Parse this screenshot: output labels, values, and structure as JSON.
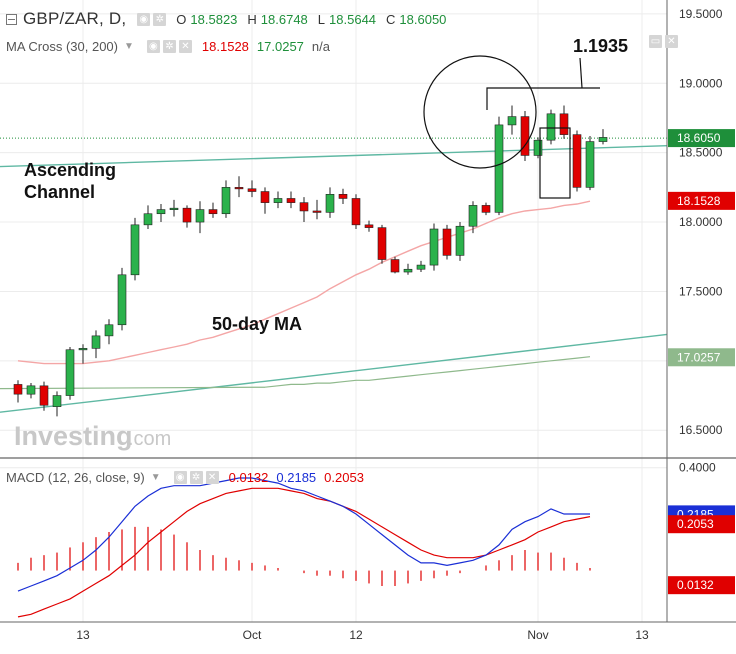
{
  "header": {
    "symbol": "GBP/ZAR, D,",
    "ohlc": [
      {
        "key": "O",
        "value": "18.5823"
      },
      {
        "key": "H",
        "value": "18.6748"
      },
      {
        "key": "L",
        "value": "18.5644"
      },
      {
        "key": "C",
        "value": "18.6050"
      }
    ],
    "ma_name": "MA Cross (30, 200)",
    "ma_v1": "18.1528",
    "ma_v2": "17.0257",
    "ma_v3": "n/a",
    "macd_name": "MACD (12, 26, close, 9)",
    "macd_v1": "0.0132",
    "macd_v2": "0.2185",
    "macd_v3": "0.2053"
  },
  "annotations": {
    "channel": "Ascending Channel",
    "ma50": "50-day MA",
    "level": "1.1935",
    "watermark": "Investing",
    "watermark_suffix": ".com"
  },
  "colors": {
    "up": "#2bb24c",
    "down": "#e00000",
    "ma30": "#f4a6a6",
    "ma200": "#8fb98c",
    "channel": "#5fb8a3",
    "macd": "#1a2fd6",
    "signal": "#e00000",
    "last_price_tag": "#1e8f3a",
    "ma_tag": "#e00000",
    "macd_tag": "#1a2fd6"
  },
  "chart_data": {
    "type": "candlestick",
    "price_axis": {
      "ylim": [
        16.3,
        19.6
      ],
      "ticks": [
        "16.5000",
        "17.0000",
        "17.5000",
        "18.0000",
        "18.5000",
        "19.0000",
        "19.5000"
      ]
    },
    "price_tags": {
      "last": "18.6050",
      "ma30": "18.1528",
      "ma200": "17.0257"
    },
    "x_ticks": [
      {
        "label": "13",
        "index": 5
      },
      {
        "label": "Oct",
        "index": 18
      },
      {
        "label": "12",
        "index": 26
      },
      {
        "label": "Nov",
        "index": 40
      },
      {
        "label": "13",
        "index": 48
      }
    ],
    "candles": [
      [
        16.83,
        16.86,
        16.7,
        16.76
      ],
      [
        16.76,
        16.84,
        16.73,
        16.82
      ],
      [
        16.82,
        16.85,
        16.64,
        16.68
      ],
      [
        16.67,
        16.78,
        16.6,
        16.75
      ],
      [
        16.75,
        17.1,
        16.72,
        17.08
      ],
      [
        17.08,
        17.12,
        16.98,
        17.09
      ],
      [
        17.09,
        17.22,
        17.02,
        17.18
      ],
      [
        17.18,
        17.3,
        17.12,
        17.26
      ],
      [
        17.26,
        17.67,
        17.22,
        17.62
      ],
      [
        17.62,
        18.03,
        17.58,
        17.98
      ],
      [
        17.98,
        18.12,
        17.95,
        18.06
      ],
      [
        18.06,
        18.13,
        18.0,
        18.09
      ],
      [
        18.09,
        18.16,
        18.04,
        18.1
      ],
      [
        18.1,
        18.12,
        17.96,
        18.0
      ],
      [
        18.0,
        18.15,
        17.92,
        18.09
      ],
      [
        18.09,
        18.14,
        18.03,
        18.06
      ],
      [
        18.06,
        18.3,
        18.03,
        18.25
      ],
      [
        18.25,
        18.33,
        18.18,
        18.24
      ],
      [
        18.24,
        18.3,
        18.18,
        18.22
      ],
      [
        18.22,
        18.25,
        18.06,
        18.14
      ],
      [
        18.14,
        18.22,
        18.1,
        18.17
      ],
      [
        18.17,
        18.22,
        18.1,
        18.14
      ],
      [
        18.14,
        18.18,
        18.0,
        18.08
      ],
      [
        18.08,
        18.16,
        18.02,
        18.07
      ],
      [
        18.07,
        18.25,
        18.03,
        18.2
      ],
      [
        18.2,
        18.24,
        18.13,
        18.17
      ],
      [
        18.17,
        18.2,
        17.95,
        17.98
      ],
      [
        17.98,
        18.01,
        17.93,
        17.96
      ],
      [
        17.96,
        17.98,
        17.7,
        17.73
      ],
      [
        17.73,
        17.75,
        17.63,
        17.64
      ],
      [
        17.64,
        17.7,
        17.62,
        17.66
      ],
      [
        17.66,
        17.72,
        17.64,
        17.69
      ],
      [
        17.69,
        17.99,
        17.65,
        17.95
      ],
      [
        17.95,
        17.98,
        17.73,
        17.76
      ],
      [
        17.76,
        18.0,
        17.72,
        17.97
      ],
      [
        17.97,
        18.15,
        17.92,
        18.12
      ],
      [
        18.12,
        18.14,
        18.05,
        18.07
      ],
      [
        18.07,
        18.76,
        18.05,
        18.7
      ],
      [
        18.7,
        18.84,
        18.63,
        18.76
      ],
      [
        18.76,
        18.8,
        18.44,
        18.48
      ],
      [
        18.48,
        18.61,
        18.46,
        18.59
      ],
      [
        18.59,
        18.81,
        18.56,
        18.78
      ],
      [
        18.78,
        18.84,
        18.6,
        18.63
      ],
      [
        18.63,
        18.66,
        18.22,
        18.25
      ],
      [
        18.25,
        18.62,
        18.23,
        18.58
      ],
      [
        18.58,
        18.67,
        18.56,
        18.61
      ]
    ],
    "ma30": [
      17.0,
      16.99,
      16.98,
      16.98,
      16.98,
      16.98,
      16.99,
      17.0,
      17.02,
      17.04,
      17.06,
      17.08,
      17.1,
      17.12,
      17.15,
      17.17,
      17.2,
      17.23,
      17.26,
      17.3,
      17.34,
      17.38,
      17.42,
      17.46,
      17.52,
      17.57,
      17.62,
      17.66,
      17.71,
      17.75,
      17.79,
      17.83,
      17.86,
      17.89,
      17.92,
      17.95,
      17.99,
      18.03,
      18.06,
      18.08,
      18.09,
      18.1,
      18.12,
      18.13,
      18.15
    ],
    "ma200": [
      16.81,
      16.82,
      16.83,
      16.83,
      16.84,
      16.84,
      16.85,
      16.86,
      16.86,
      16.87,
      16.88,
      16.89,
      16.9,
      16.91,
      16.92,
      16.93,
      16.94,
      16.95,
      16.96,
      16.97,
      16.98,
      16.99,
      17.0,
      17.01,
      17.02,
      17.03
    ],
    "channel_upper": {
      "from": [
        0,
        18.4
      ],
      "to": [
        53,
        18.55
      ]
    },
    "channel_lower": {
      "from": [
        0,
        16.63
      ],
      "to": [
        53,
        17.19
      ]
    },
    "macd_axis": {
      "ylim": [
        -0.2,
        0.43
      ],
      "ticks": [
        "0.4000"
      ]
    },
    "macd_tags": {
      "macd": "0.2185",
      "signal": "0.2053",
      "hist": "0.0132"
    },
    "macd": [
      -0.08,
      -0.06,
      -0.04,
      -0.02,
      0.01,
      0.04,
      0.08,
      0.13,
      0.19,
      0.25,
      0.29,
      0.32,
      0.33,
      0.33,
      0.33,
      0.34,
      0.35,
      0.36,
      0.36,
      0.35,
      0.34,
      0.32,
      0.31,
      0.29,
      0.27,
      0.25,
      0.22,
      0.18,
      0.14,
      0.1,
      0.06,
      0.03,
      0.03,
      0.02,
      0.03,
      0.04,
      0.06,
      0.1,
      0.16,
      0.19,
      0.21,
      0.24,
      0.22,
      0.22,
      0.22
    ],
    "signal": [
      -0.18,
      -0.17,
      -0.15,
      -0.13,
      -0.11,
      -0.08,
      -0.05,
      -0.02,
      0.02,
      0.06,
      0.11,
      0.15,
      0.19,
      0.23,
      0.26,
      0.28,
      0.3,
      0.31,
      0.32,
      0.32,
      0.32,
      0.31,
      0.3,
      0.28,
      0.27,
      0.25,
      0.23,
      0.2,
      0.17,
      0.14,
      0.11,
      0.08,
      0.06,
      0.05,
      0.05,
      0.05,
      0.06,
      0.08,
      0.1,
      0.12,
      0.15,
      0.17,
      0.19,
      0.2,
      0.21
    ],
    "histogram": [
      0.03,
      0.05,
      0.06,
      0.07,
      0.09,
      0.11,
      0.13,
      0.15,
      0.16,
      0.17,
      0.17,
      0.16,
      0.14,
      0.11,
      0.08,
      0.06,
      0.05,
      0.04,
      0.03,
      0.02,
      0.01,
      0.0,
      -0.01,
      -0.02,
      -0.02,
      -0.03,
      -0.04,
      -0.05,
      -0.06,
      -0.06,
      -0.05,
      -0.04,
      -0.03,
      -0.02,
      -0.01,
      0.0,
      0.02,
      0.04,
      0.06,
      0.08,
      0.07,
      0.07,
      0.05,
      0.03,
      0.01
    ]
  }
}
